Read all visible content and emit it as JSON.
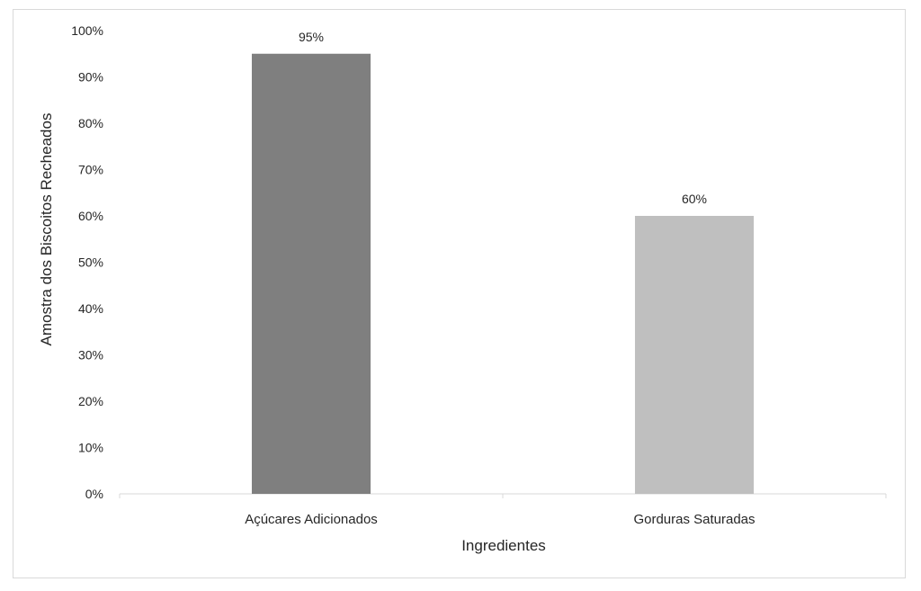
{
  "chart_data": {
    "type": "bar",
    "title": "",
    "xlabel": "Ingredientes",
    "ylabel": "Amostra dos Biscoitos Recheados",
    "categories": [
      "Açúcares Adicionados",
      "Gorduras Saturadas"
    ],
    "values": [
      95,
      60
    ],
    "data_labels": [
      "95%",
      "60%"
    ],
    "bar_colors": [
      "#7f7f7f",
      "#bfbfbf"
    ],
    "ylim": [
      0,
      100
    ],
    "y_ticks": [
      "0%",
      "10%",
      "20%",
      "30%",
      "40%",
      "50%",
      "60%",
      "70%",
      "80%",
      "90%",
      "100%"
    ],
    "grid": false,
    "legend": "none"
  }
}
